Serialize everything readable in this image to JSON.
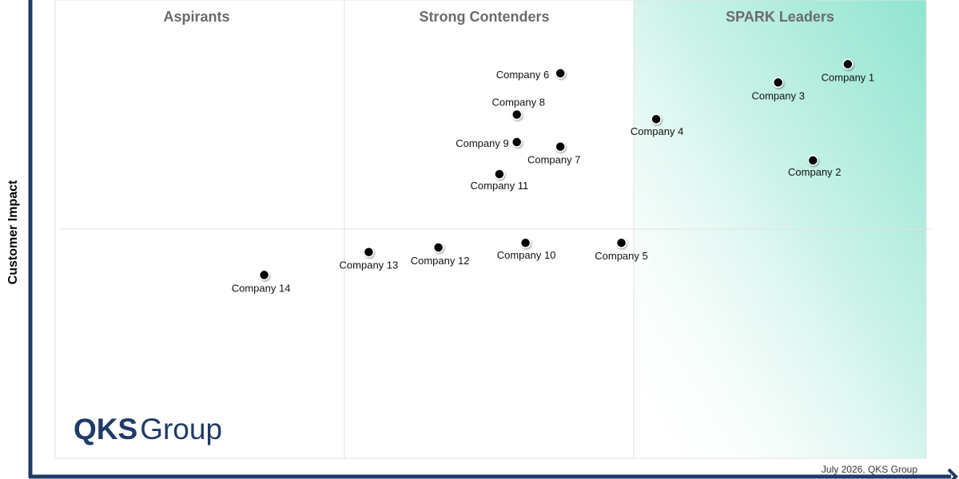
{
  "chart_data": {
    "type": "scatter",
    "title": "",
    "ylabel": "Customer Impact",
    "xlabel": "",
    "quadrant_labels": [
      "Aspirants",
      "Strong Contenders",
      "SPARK Leaders"
    ],
    "footnote": "July 2026, QKS Group",
    "logo_text": {
      "mark": "QKS",
      "word": "Group"
    },
    "points": [
      {
        "label": "Company 1",
        "x": 91,
        "y": 86
      },
      {
        "label": "Company 2",
        "x": 87,
        "y": 65
      },
      {
        "label": "Company 3",
        "x": 83,
        "y": 82
      },
      {
        "label": "Company 4",
        "x": 69,
        "y": 74
      },
      {
        "label": "Company 5",
        "x": 65,
        "y": 47
      },
      {
        "label": "Company 6",
        "x": 58,
        "y": 84
      },
      {
        "label": "Company 7",
        "x": 58,
        "y": 68
      },
      {
        "label": "Company 8",
        "x": 53,
        "y": 75
      },
      {
        "label": "Company 9",
        "x": 53,
        "y": 69
      },
      {
        "label": "Company 10",
        "x": 54,
        "y": 47
      },
      {
        "label": "Company 11",
        "x": 51,
        "y": 62
      },
      {
        "label": "Company 12",
        "x": 44,
        "y": 46
      },
      {
        "label": "Company 13",
        "x": 36,
        "y": 45
      },
      {
        "label": "Company 14",
        "x": 24,
        "y": 40
      }
    ],
    "colors": {
      "leader_gradient": "#8fe4cf",
      "axis": "#1f3b66",
      "point": "#000000",
      "grid": "#e2e2e2",
      "quadrant_label": "#6b6b6b",
      "logo": "#1f3b66"
    },
    "grid": true,
    "xlim": [
      0,
      100
    ],
    "ylim": [
      0,
      100
    ]
  }
}
